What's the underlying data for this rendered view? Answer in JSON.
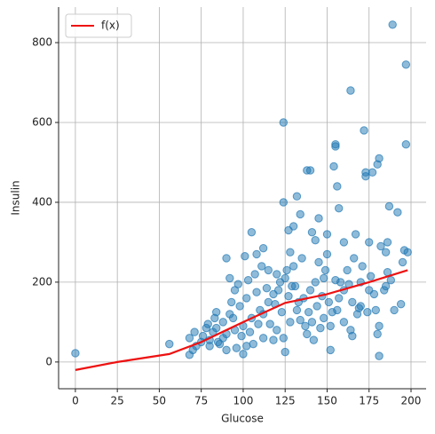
{
  "chart_data": {
    "type": "scatter",
    "xlabel": "Glucose",
    "ylabel": "Insulin",
    "xlim": [
      -10,
      209
    ],
    "ylim": [
      -67,
      889
    ],
    "xticks": [
      0,
      25,
      50,
      75,
      100,
      125,
      150,
      175,
      200
    ],
    "yticks": [
      0,
      200,
      400,
      600,
      800
    ],
    "grid": true,
    "legend": "upper left",
    "series": [
      {
        "type": "scatter",
        "color": "#1f77b4",
        "x": [
          0,
          56,
          68,
          68,
          71,
          75,
          80,
          83,
          84,
          88,
          90,
          92,
          95,
          100,
          101,
          105,
          108,
          112,
          115,
          120,
          124,
          124,
          125,
          127,
          130,
          132,
          134,
          138,
          140,
          141,
          143,
          145,
          148,
          150,
          152,
          154,
          155,
          155,
          156,
          157,
          158,
          160,
          164,
          165,
          167,
          170,
          172,
          173,
          173,
          175,
          177,
          180,
          181,
          181,
          181,
          182,
          185,
          186,
          187,
          189,
          190,
          192,
          194,
          196,
          197,
          197,
          198,
          180,
          160,
          165,
          170,
          175,
          178,
          185,
          188,
          195,
          145,
          150,
          135,
          130,
          128,
          126,
          122,
          118,
          115,
          110,
          105,
          100,
          95,
          90,
          85,
          80,
          78,
          88,
          92,
          98,
          102,
          108,
          112,
          116,
          120,
          124,
          128,
          132,
          136,
          140,
          144,
          148,
          152,
          156,
          160,
          164,
          168,
          138,
          142,
          146,
          118,
          112,
          106,
          102,
          96,
          90,
          86,
          82,
          76,
          72,
          94,
          99,
          104,
          109,
          114,
          119,
          123,
          127,
          131,
          134,
          139,
          143,
          147,
          151,
          155,
          162,
          166,
          171,
          176,
          184,
          186,
          70,
          79,
          84,
          93,
          97,
          103,
          107,
          111,
          121,
          125,
          129,
          133,
          137,
          141,
          149,
          153,
          157,
          163,
          169,
          174,
          179
        ],
        "values": [
          22,
          45,
          18,
          60,
          75,
          50,
          55,
          110,
          125,
          60,
          260,
          210,
          180,
          20,
          265,
          325,
          270,
          285,
          230,
          220,
          600,
          400,
          25,
          330,
          340,
          415,
          370,
          480,
          480,
          325,
          305,
          360,
          210,
          320,
          30,
          490,
          545,
          540,
          440,
          385,
          200,
          300,
          680,
          65,
          320,
          140,
          580,
          475,
          465,
          300,
          475,
          495,
          510,
          90,
          15,
          290,
          275,
          225,
          390,
          845,
          130,
          375,
          145,
          280,
          745,
          545,
          275,
          70,
          180,
          150,
          200,
          180,
          170,
          190,
          205,
          250,
          250,
          270,
          260,
          240,
          275,
          230,
          200,
          170,
          150,
          130,
          110,
          90,
          80,
          70,
          50,
          40,
          85,
          100,
          120,
          140,
          160,
          175,
          120,
          95,
          80,
          60,
          100,
          130,
          160,
          180,
          140,
          110,
          90,
          130,
          100,
          80,
          120,
          70,
          55,
          85,
          55,
          60,
          45,
          40,
          35,
          30,
          45,
          75,
          65,
          40,
          110,
          65,
          75,
          95,
          185,
          145,
          125,
          165,
          190,
          105,
          125,
          200,
          165,
          150,
          205,
          230,
          260,
          240,
          215,
          180,
          300,
          30,
          95,
          85,
          150,
          195,
          205,
          220,
          240,
          180,
          210,
          190,
          150,
          90,
          100,
          230,
          125,
          160,
          195,
          135,
          125,
          130
        ]
      },
      {
        "type": "line",
        "name": "f(x)",
        "color": "#ee1111",
        "x": [
          0,
          25,
          56,
          75,
          100,
          125,
          150,
          175,
          198
        ],
        "values": [
          -20,
          0,
          20,
          50,
          100,
          148,
          170,
          200,
          230
        ]
      }
    ]
  }
}
